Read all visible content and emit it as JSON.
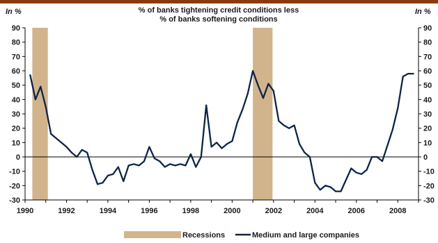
{
  "chart_data": {
    "type": "line",
    "title": "% of banks tightening credit conditions less",
    "subtitle": "% of banks softening conditions",
    "unit_left": "In %",
    "unit_right": "In %",
    "xlabel": "",
    "ylabel": "",
    "xlim": [
      1990,
      2009
    ],
    "ylim": [
      -30,
      90
    ],
    "y_ticks": [
      90,
      80,
      70,
      60,
      50,
      40,
      30,
      20,
      10,
      0,
      -10,
      -20,
      -30
    ],
    "x_ticks": [
      1990,
      1992,
      1994,
      1996,
      1998,
      2000,
      2002,
      2004,
      2006,
      2008
    ],
    "grid": false,
    "legend_position": "bottom-center",
    "recessions": [
      {
        "start": 1990.35,
        "end": 1991.1
      },
      {
        "start": 2001.0,
        "end": 2001.95
      }
    ],
    "series": [
      {
        "name": "Medium and large companies",
        "color": "#0d2447",
        "x": [
          1990.25,
          1990.5,
          1990.75,
          1991.0,
          1991.25,
          1991.5,
          1991.75,
          1992.0,
          1992.25,
          1992.5,
          1992.75,
          1993.0,
          1993.25,
          1993.5,
          1993.75,
          1994.0,
          1994.25,
          1994.5,
          1994.75,
          1995.0,
          1995.25,
          1995.5,
          1995.75,
          1996.0,
          1996.25,
          1996.5,
          1996.75,
          1997.0,
          1997.25,
          1997.5,
          1997.75,
          1998.0,
          1998.25,
          1998.5,
          1998.75,
          1999.0,
          1999.25,
          1999.5,
          1999.75,
          2000.0,
          2000.25,
          2000.5,
          2000.75,
          2001.0,
          2001.25,
          2001.5,
          2001.75,
          2002.0,
          2002.25,
          2002.5,
          2002.75,
          2003.0,
          2003.25,
          2003.5,
          2003.75,
          2004.0,
          2004.25,
          2004.5,
          2004.75,
          2005.0,
          2005.25,
          2005.5,
          2005.75,
          2006.0,
          2006.25,
          2006.5,
          2006.75,
          2007.0,
          2007.25,
          2007.5,
          2007.75,
          2008.0,
          2008.25,
          2008.5,
          2008.75
        ],
        "values": [
          57,
          40,
          49,
          35,
          16,
          13,
          10,
          7,
          3,
          0,
          5,
          3,
          -9,
          -19,
          -18,
          -13,
          -12,
          -7,
          -17,
          -6,
          -5,
          -6,
          -3,
          7,
          -1,
          -3,
          -7,
          -5,
          -6,
          -5,
          -6,
          2,
          -7,
          0,
          36,
          7,
          10,
          6,
          9,
          11,
          24,
          33,
          44,
          60,
          50,
          41,
          51,
          46,
          25,
          22,
          20,
          22,
          9,
          3,
          0,
          -18,
          -23,
          -20,
          -21,
          -24,
          -24,
          -16,
          -8,
          -11,
          -12,
          -9,
          0,
          0,
          -3,
          8,
          19,
          34,
          56,
          58,
          58
        ]
      }
    ],
    "legend": [
      {
        "label": "Recessions",
        "kind": "bar",
        "color": "#d2b48c"
      },
      {
        "label": "Medium and large companies",
        "kind": "line",
        "color": "#0d2447"
      }
    ]
  }
}
